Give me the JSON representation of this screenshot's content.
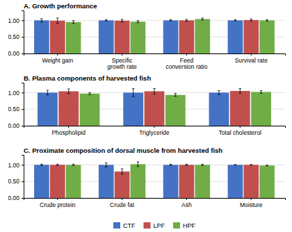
{
  "chart_data": [
    {
      "type": "bar",
      "title": "A. Growth performance",
      "categories": [
        "Weight gain",
        "Specific\ngrowth rate",
        "Feed\nconversion ratio",
        "Survival rate"
      ],
      "series": [
        {
          "name": "CTF",
          "color": "#4472C4",
          "values": [
            1.0,
            1.0,
            1.0,
            1.0
          ],
          "errors": [
            0.05,
            0.02,
            0.02,
            0.02
          ]
        },
        {
          "name": "LPF",
          "color": "#C0504D",
          "values": [
            0.99,
            0.99,
            1.0,
            1.01
          ],
          "errors": [
            0.08,
            0.04,
            0.03,
            0.03
          ]
        },
        {
          "name": "HPF",
          "color": "#70AD47",
          "values": [
            0.95,
            0.96,
            1.04,
            1.0
          ],
          "errors": [
            0.04,
            0.03,
            0.03,
            0.02
          ]
        }
      ],
      "ylim": [
        0.0,
        1.3
      ],
      "yticks": [
        {
          "value": 0.0,
          "label": "0.00"
        },
        {
          "value": 0.5,
          "label": "0.50"
        },
        {
          "value": 1.0,
          "label": "1.00"
        }
      ],
      "grid": true,
      "legend": "bottom"
    },
    {
      "type": "bar",
      "title": "B. Plasma components of harvested fish",
      "categories": [
        "Phospholipid",
        "Triglyceride",
        "Total cholesterol"
      ],
      "series": [
        {
          "name": "CTF",
          "color": "#4472C4",
          "values": [
            1.0,
            1.0,
            1.0
          ],
          "errors": [
            0.07,
            0.12,
            0.06
          ]
        },
        {
          "name": "LPF",
          "color": "#C0504D",
          "values": [
            1.04,
            1.04,
            1.05
          ],
          "errors": [
            0.07,
            0.08,
            0.07
          ]
        },
        {
          "name": "HPF",
          "color": "#70AD47",
          "values": [
            0.97,
            0.93,
            1.02
          ],
          "errors": [
            0.03,
            0.04,
            0.04
          ]
        }
      ],
      "ylim": [
        0.0,
        1.3
      ],
      "yticks": [
        {
          "value": 0.0,
          "label": "0.00"
        },
        {
          "value": 0.5,
          "label": "0.50"
        },
        {
          "value": 1.0,
          "label": "1.00"
        }
      ],
      "grid": true
    },
    {
      "type": "bar",
      "title": "C. Proximate composition of dorsal muscle from harvested fish",
      "categories": [
        "Crude protein",
        "Crude fat",
        "Ash",
        "Moisture"
      ],
      "series": [
        {
          "name": "CTF",
          "color": "#4472C4",
          "values": [
            1.0,
            1.0,
            1.0,
            1.0
          ],
          "errors": [
            0.02,
            0.06,
            0.02,
            0.01
          ]
        },
        {
          "name": "LPF",
          "color": "#C0504D",
          "values": [
            1.0,
            0.8,
            1.0,
            1.0
          ],
          "errors": [
            0.02,
            0.08,
            0.02,
            0.01
          ]
        },
        {
          "name": "HPF",
          "color": "#70AD47",
          "values": [
            1.0,
            1.02,
            1.0,
            0.98
          ],
          "errors": [
            0.02,
            0.07,
            0.02,
            0.01
          ]
        }
      ],
      "ylim": [
        0.0,
        1.3
      ],
      "yticks": [
        {
          "value": 0.0,
          "label": "0.00"
        },
        {
          "value": 0.5,
          "label": "0.50"
        },
        {
          "value": 1.0,
          "label": "1.00"
        }
      ],
      "grid": true
    }
  ]
}
